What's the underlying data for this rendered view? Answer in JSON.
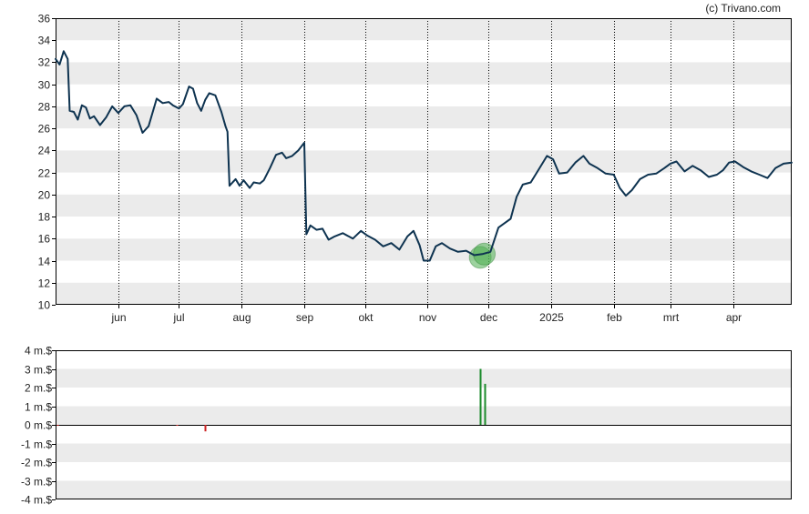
{
  "credit": "(c) Trivano.com",
  "colors": {
    "price_line": "#0e3350",
    "band": "#ebebeb",
    "axis": "#000000",
    "grid": "#000000",
    "marker_fill": "#4caf50",
    "volume_up": "#1a8a2a",
    "volume_down": "#cc2222"
  },
  "chart_data": [
    {
      "type": "line",
      "name": "price",
      "ylim": [
        10,
        36
      ],
      "yticks": [
        10,
        12,
        14,
        16,
        18,
        20,
        22,
        24,
        26,
        28,
        30,
        32,
        34,
        36
      ],
      "grid": "vertical dotted at month starts, alternating horizontal bands",
      "x_domain": [
        "2024-05-01",
        "2025-04-30"
      ],
      "xticks": [
        {
          "label": "jun",
          "date": "2024-06-01"
        },
        {
          "label": "jul",
          "date": "2024-07-01"
        },
        {
          "label": "aug",
          "date": "2024-08-01"
        },
        {
          "label": "sep",
          "date": "2024-09-01"
        },
        {
          "label": "okt",
          "date": "2024-10-01"
        },
        {
          "label": "nov",
          "date": "2024-11-01"
        },
        {
          "label": "dec",
          "date": "2024-12-01"
        },
        {
          "label": "2025",
          "date": "2025-01-01"
        },
        {
          "label": "feb",
          "date": "2025-02-01"
        },
        {
          "label": "mrt",
          "date": "2025-03-01"
        },
        {
          "label": "apr",
          "date": "2025-04-01"
        }
      ],
      "series": [
        {
          "points": [
            [
              "2024-05-01",
              32.3
            ],
            [
              "2024-05-03",
              31.8
            ],
            [
              "2024-05-05",
              33.0
            ],
            [
              "2024-05-07",
              32.3
            ],
            [
              "2024-05-08",
              27.6
            ],
            [
              "2024-05-10",
              27.5
            ],
            [
              "2024-05-12",
              26.8
            ],
            [
              "2024-05-14",
              28.1
            ],
            [
              "2024-05-16",
              27.9
            ],
            [
              "2024-05-18",
              26.9
            ],
            [
              "2024-05-20",
              27.1
            ],
            [
              "2024-05-23",
              26.3
            ],
            [
              "2024-05-26",
              27.0
            ],
            [
              "2024-05-29",
              28.0
            ],
            [
              "2024-06-01",
              27.4
            ],
            [
              "2024-06-04",
              28.0
            ],
            [
              "2024-06-07",
              28.1
            ],
            [
              "2024-06-10",
              27.2
            ],
            [
              "2024-06-13",
              25.6
            ],
            [
              "2024-06-16",
              26.2
            ],
            [
              "2024-06-20",
              28.7
            ],
            [
              "2024-06-23",
              28.3
            ],
            [
              "2024-06-26",
              28.4
            ],
            [
              "2024-06-28",
              28.1
            ],
            [
              "2024-07-01",
              27.8
            ],
            [
              "2024-07-03",
              28.2
            ],
            [
              "2024-07-06",
              29.8
            ],
            [
              "2024-07-08",
              29.6
            ],
            [
              "2024-07-10",
              28.3
            ],
            [
              "2024-07-12",
              27.6
            ],
            [
              "2024-07-14",
              28.6
            ],
            [
              "2024-07-16",
              29.2
            ],
            [
              "2024-07-19",
              29.0
            ],
            [
              "2024-07-22",
              27.5
            ],
            [
              "2024-07-24",
              26.2
            ],
            [
              "2024-07-25",
              25.7
            ],
            [
              "2024-07-26",
              20.8
            ],
            [
              "2024-07-29",
              21.4
            ],
            [
              "2024-07-31",
              20.8
            ],
            [
              "2024-08-02",
              21.3
            ],
            [
              "2024-08-05",
              20.6
            ],
            [
              "2024-08-07",
              21.1
            ],
            [
              "2024-08-10",
              21.0
            ],
            [
              "2024-08-12",
              21.3
            ],
            [
              "2024-08-15",
              22.4
            ],
            [
              "2024-08-18",
              23.6
            ],
            [
              "2024-08-21",
              23.8
            ],
            [
              "2024-08-23",
              23.3
            ],
            [
              "2024-08-26",
              23.5
            ],
            [
              "2024-08-29",
              24.0
            ],
            [
              "2024-09-01",
              24.7
            ],
            [
              "2024-09-02",
              16.4
            ],
            [
              "2024-09-04",
              17.2
            ],
            [
              "2024-09-07",
              16.8
            ],
            [
              "2024-09-10",
              16.9
            ],
            [
              "2024-09-13",
              15.9
            ],
            [
              "2024-09-16",
              16.2
            ],
            [
              "2024-09-20",
              16.5
            ],
            [
              "2024-09-25",
              16.0
            ],
            [
              "2024-09-29",
              16.7
            ],
            [
              "2024-10-02",
              16.3
            ],
            [
              "2024-10-06",
              15.9
            ],
            [
              "2024-10-10",
              15.3
            ],
            [
              "2024-10-14",
              15.6
            ],
            [
              "2024-10-18",
              15.0
            ],
            [
              "2024-10-22",
              16.2
            ],
            [
              "2024-10-25",
              16.7
            ],
            [
              "2024-10-28",
              15.4
            ],
            [
              "2024-10-30",
              14.0
            ],
            [
              "2024-11-02",
              14.0
            ],
            [
              "2024-11-05",
              15.3
            ],
            [
              "2024-11-08",
              15.6
            ],
            [
              "2024-11-12",
              15.1
            ],
            [
              "2024-11-16",
              14.8
            ],
            [
              "2024-11-20",
              14.9
            ],
            [
              "2024-11-24",
              14.5
            ],
            [
              "2024-11-28",
              14.6
            ],
            [
              "2024-12-02",
              14.8
            ],
            [
              "2024-12-06",
              17.0
            ],
            [
              "2024-12-09",
              17.4
            ],
            [
              "2024-12-12",
              17.8
            ],
            [
              "2024-12-15",
              19.8
            ],
            [
              "2024-12-18",
              20.9
            ],
            [
              "2024-12-22",
              21.1
            ],
            [
              "2024-12-26",
              22.3
            ],
            [
              "2024-12-30",
              23.5
            ],
            [
              "2025-01-02",
              23.2
            ],
            [
              "2025-01-05",
              21.9
            ],
            [
              "2025-01-09",
              22.0
            ],
            [
              "2025-01-13",
              22.9
            ],
            [
              "2025-01-17",
              23.5
            ],
            [
              "2025-01-20",
              22.8
            ],
            [
              "2025-01-24",
              22.4
            ],
            [
              "2025-01-28",
              21.9
            ],
            [
              "2025-02-01",
              21.8
            ],
            [
              "2025-02-04",
              20.6
            ],
            [
              "2025-02-07",
              19.9
            ],
            [
              "2025-02-10",
              20.4
            ],
            [
              "2025-02-14",
              21.4
            ],
            [
              "2025-02-18",
              21.8
            ],
            [
              "2025-02-22",
              21.9
            ],
            [
              "2025-02-26",
              22.4
            ],
            [
              "2025-03-01",
              22.8
            ],
            [
              "2025-03-04",
              23.0
            ],
            [
              "2025-03-08",
              22.1
            ],
            [
              "2025-03-12",
              22.6
            ],
            [
              "2025-03-16",
              22.2
            ],
            [
              "2025-03-20",
              21.6
            ],
            [
              "2025-03-24",
              21.8
            ],
            [
              "2025-03-27",
              22.2
            ],
            [
              "2025-03-30",
              22.9
            ],
            [
              "2025-04-02",
              23.0
            ],
            [
              "2025-04-06",
              22.5
            ],
            [
              "2025-04-10",
              22.1
            ],
            [
              "2025-04-14",
              21.8
            ],
            [
              "2025-04-18",
              21.5
            ],
            [
              "2025-04-22",
              22.4
            ],
            [
              "2025-04-26",
              22.8
            ],
            [
              "2025-04-30",
              22.9
            ]
          ]
        }
      ],
      "markers": [
        {
          "date": "2024-11-27",
          "value": 14.3
        },
        {
          "date": "2024-11-29",
          "value": 14.6
        }
      ]
    },
    {
      "type": "bar",
      "name": "volume",
      "ylim": [
        -4,
        4
      ],
      "yticks": [
        {
          "value": 4,
          "label": "4 m.$"
        },
        {
          "value": 3,
          "label": "3 m.$"
        },
        {
          "value": 2,
          "label": "2 m.$"
        },
        {
          "value": 1,
          "label": "1 m.$"
        },
        {
          "value": 0,
          "label": "0 m.$"
        },
        {
          "value": -1,
          "label": "-1 m.$"
        },
        {
          "value": -2,
          "label": "-2 m.$"
        },
        {
          "value": -3,
          "label": "-3 m.$"
        },
        {
          "value": -4,
          "label": "-4 m.$"
        }
      ],
      "grid": "alternating horizontal bands, zero line",
      "x_domain": [
        "2024-05-01",
        "2025-04-30"
      ],
      "bars": [
        {
          "date": "2024-05-02",
          "value": -0.05
        },
        {
          "date": "2024-06-30",
          "value": -0.05
        },
        {
          "date": "2024-07-14",
          "value": -0.35
        },
        {
          "date": "2024-11-27",
          "value": 3.0
        },
        {
          "date": "2024-11-29",
          "value": 2.2
        }
      ]
    }
  ]
}
